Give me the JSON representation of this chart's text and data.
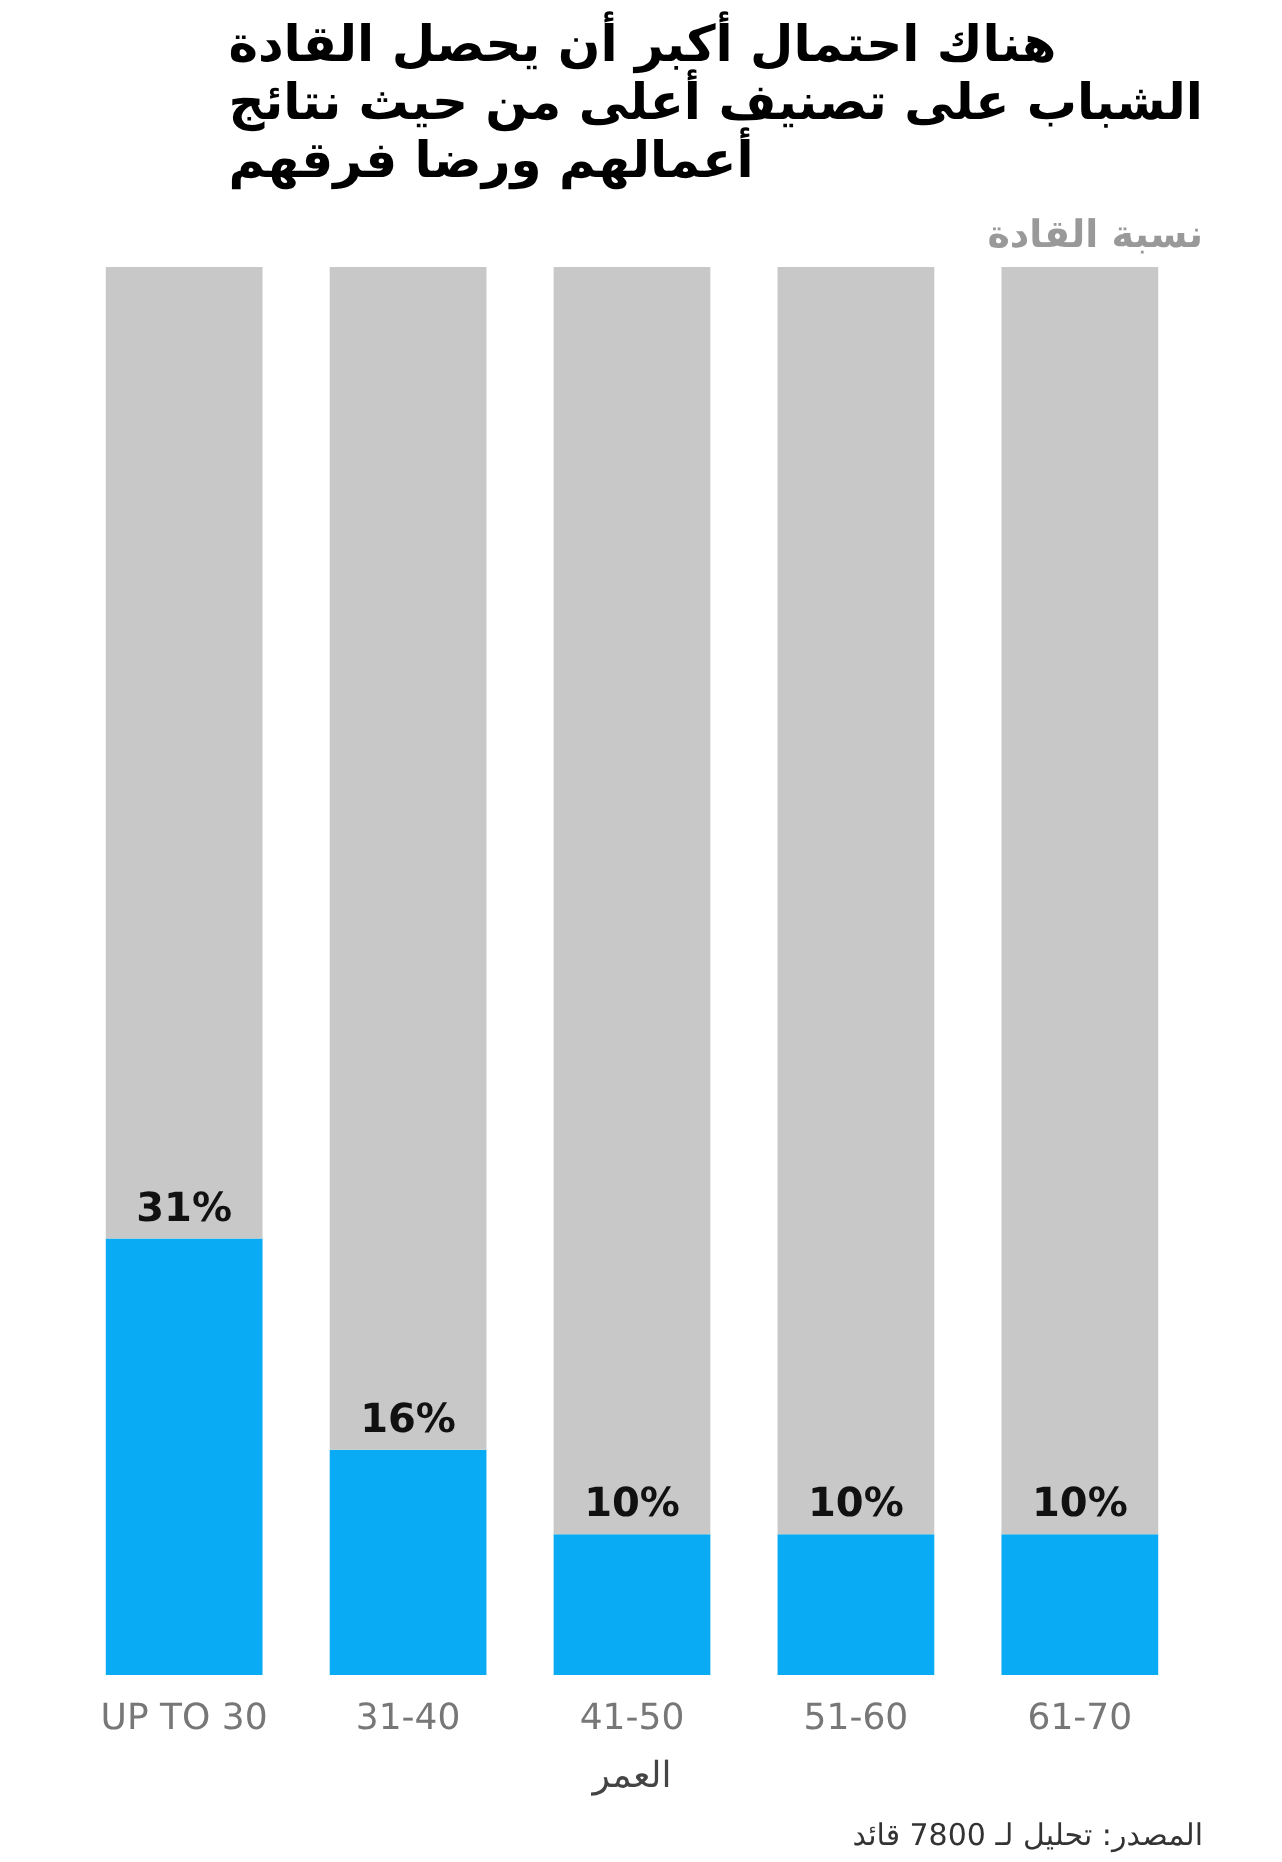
{
  "chart_data": {
    "type": "bar",
    "stacked": true,
    "title": "هناك احتمال أكبر أن يحصل القادة الشباب على تصنيف أعلى من حيث نتائج أعمالهم ورضا فرقهم",
    "ylabel": "نسبة القادة",
    "xlabel": "العمر",
    "categories": [
      "UP TO 30",
      "31-40",
      "41-50",
      "51-60",
      "61-70"
    ],
    "series": [
      {
        "color": "#0aabf5",
        "values": [
          31,
          16,
          10,
          10,
          10
        ],
        "value_labels": [
          "31%",
          "16%",
          "10%",
          "10%",
          "10%"
        ]
      },
      {
        "color": "#c8c8c8",
        "values": [
          69,
          84,
          90,
          90,
          90
        ]
      }
    ],
    "ylim": [
      0,
      100
    ],
    "grid": false,
    "annotations": [
      "المصدر: تحليل لـ 7800 قائد"
    ]
  }
}
